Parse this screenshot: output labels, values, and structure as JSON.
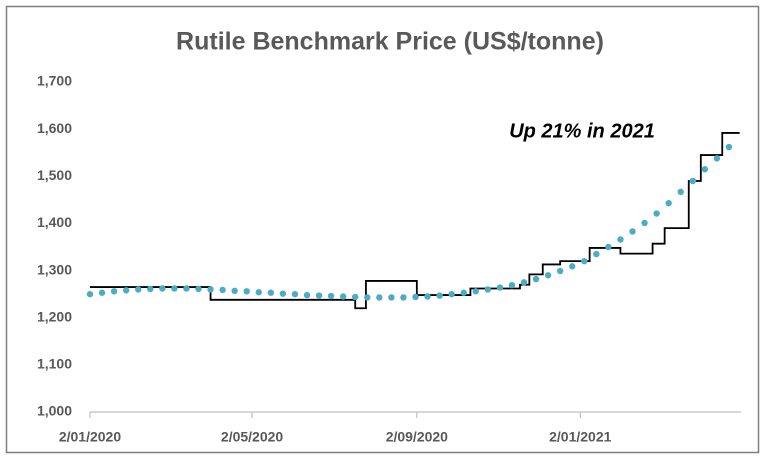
{
  "chart_data": {
    "type": "line",
    "title": "Rutile Benchmark Price (US$/tonne)",
    "annotation": "Up 21% in 2021",
    "xlim": [
      "2020-01-02",
      "2021-05-02"
    ],
    "xticks": [
      {
        "value": "2020-01-02",
        "label": "2/01/2020"
      },
      {
        "value": "2020-05-02",
        "label": "2/05/2020"
      },
      {
        "value": "2020-09-02",
        "label": "2/09/2020"
      },
      {
        "value": "2021-01-02",
        "label": "2/01/2021"
      }
    ],
    "ylim": [
      1000,
      1700
    ],
    "yticks": [
      {
        "value": 1000,
        "label": "1,000"
      },
      {
        "value": 1100,
        "label": "1,100"
      },
      {
        "value": 1200,
        "label": "1,200"
      },
      {
        "value": 1300,
        "label": "1,300"
      },
      {
        "value": 1400,
        "label": "1,400"
      },
      {
        "value": 1500,
        "label": "1,500"
      },
      {
        "value": 1600,
        "label": "1,600"
      },
      {
        "value": 1700,
        "label": "1,700"
      }
    ],
    "grid": false,
    "series": [
      {
        "style": "step",
        "color": "#000000",
        "x": [
          "2020-01-02",
          "2020-04-01",
          "2020-07-18",
          "2020-07-26",
          "2020-09-02",
          "2020-10-12",
          "2020-11-18",
          "2020-11-25",
          "2020-12-05",
          "2020-12-18",
          "2021-01-09",
          "2021-02-01",
          "2021-02-25",
          "2021-03-06",
          "2021-03-24",
          "2021-04-02",
          "2021-04-18",
          "2021-05-01"
        ],
        "values": [
          1265,
          1238,
          1220,
          1278,
          1248,
          1262,
          1270,
          1292,
          1313,
          1320,
          1348,
          1336,
          1357,
          1390,
          1490,
          1545,
          1592,
          1592
        ]
      },
      {
        "style": "dots",
        "color": "#4bacc6",
        "x": [
          "2020-01-02",
          "2020-01-11",
          "2020-01-20",
          "2020-01-29",
          "2020-02-07",
          "2020-02-16",
          "2020-02-25",
          "2020-03-05",
          "2020-03-14",
          "2020-03-23",
          "2020-04-01",
          "2020-04-10",
          "2020-04-19",
          "2020-04-28",
          "2020-05-07",
          "2020-05-16",
          "2020-05-25",
          "2020-06-03",
          "2020-06-12",
          "2020-06-21",
          "2020-06-30",
          "2020-07-09",
          "2020-07-18",
          "2020-07-27",
          "2020-08-05",
          "2020-08-14",
          "2020-08-23",
          "2020-09-01",
          "2020-09-10",
          "2020-09-19",
          "2020-09-28",
          "2020-10-07",
          "2020-10-16",
          "2020-10-25",
          "2020-11-03",
          "2020-11-12",
          "2020-11-21",
          "2020-11-30",
          "2020-12-09",
          "2020-12-18",
          "2020-12-27",
          "2021-01-05",
          "2021-01-14",
          "2021-01-23",
          "2021-02-01",
          "2021-02-10",
          "2021-02-19",
          "2021-02-28",
          "2021-03-09",
          "2021-03-18",
          "2021-03-27",
          "2021-04-05",
          "2021-04-14",
          "2021-04-23"
        ],
        "values": [
          1250,
          1253,
          1256,
          1258,
          1260,
          1261,
          1262,
          1262,
          1262,
          1261,
          1260,
          1259,
          1257,
          1256,
          1254,
          1253,
          1251,
          1250,
          1248,
          1247,
          1246,
          1245,
          1244,
          1243,
          1243,
          1243,
          1243,
          1244,
          1245,
          1247,
          1250,
          1253,
          1256,
          1260,
          1264,
          1269,
          1275,
          1282,
          1290,
          1299,
          1309,
          1320,
          1335,
          1350,
          1366,
          1383,
          1401,
          1421,
          1443,
          1467,
          1490,
          1515,
          1538,
          1562
        ]
      }
    ]
  }
}
